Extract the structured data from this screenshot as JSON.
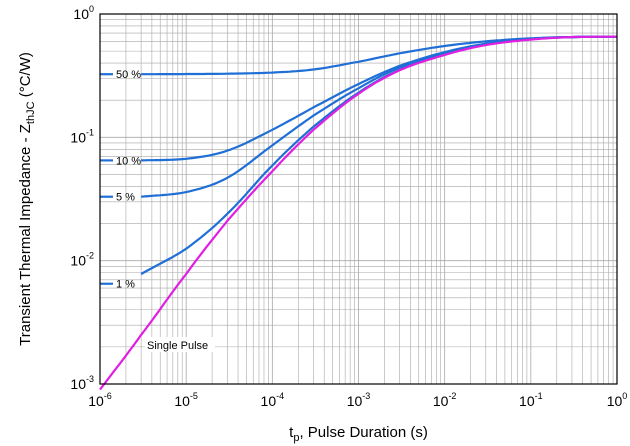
{
  "chart_data": {
    "type": "line",
    "scale": {
      "x": "log",
      "y": "log"
    },
    "xlim": [
      1e-06,
      1
    ],
    "ylim": [
      0.001,
      1
    ],
    "grid": true,
    "xlabel": {
      "main": "t",
      "sub": "p",
      "rest": ", Pulse Duration (s)"
    },
    "ylabel": {
      "main": "Transient Thermal Impedance - Z",
      "sub": "thJC",
      "rest": " (°C/W)"
    },
    "x_ticks": [
      {
        "base": "10",
        "exp": "-6"
      },
      {
        "base": "10",
        "exp": "-5"
      },
      {
        "base": "10",
        "exp": "-4"
      },
      {
        "base": "10",
        "exp": "-3"
      },
      {
        "base": "10",
        "exp": "-2"
      },
      {
        "base": "10",
        "exp": "-1"
      },
      {
        "base": "10",
        "exp": "0"
      }
    ],
    "y_ticks": [
      {
        "base": "10",
        "exp": "-3"
      },
      {
        "base": "10",
        "exp": "-2"
      },
      {
        "base": "10",
        "exp": "-1"
      },
      {
        "base": "10",
        "exp": "0"
      }
    ],
    "colors": {
      "duty": "#1f6fd6",
      "single": "#e020e0",
      "grid": "#a8a8a8",
      "frame": "#000000"
    },
    "series": [
      {
        "name": "50 %",
        "color": "#1f6fd6",
        "x": [
          3e-06,
          1e-05,
          3e-05,
          0.0001,
          0.0003,
          0.001,
          0.003,
          0.01,
          0.03,
          0.1,
          0.3,
          1
        ],
        "y": [
          0.325,
          0.326,
          0.328,
          0.335,
          0.355,
          0.41,
          0.48,
          0.55,
          0.6,
          0.635,
          0.65,
          0.655
        ]
      },
      {
        "name": "10 %",
        "color": "#1f6fd6",
        "x": [
          3e-06,
          1e-05,
          3e-05,
          0.0001,
          0.0003,
          0.001,
          0.003,
          0.01,
          0.03,
          0.1,
          0.3,
          1
        ],
        "y": [
          0.065,
          0.067,
          0.078,
          0.115,
          0.175,
          0.27,
          0.38,
          0.49,
          0.575,
          0.63,
          0.65,
          0.655
        ]
      },
      {
        "name": "5 %",
        "color": "#1f6fd6",
        "x": [
          3e-06,
          1e-05,
          3e-05,
          0.0001,
          0.0003,
          0.001,
          0.003,
          0.01,
          0.03,
          0.1,
          0.3,
          1
        ],
        "y": [
          0.033,
          0.036,
          0.047,
          0.086,
          0.15,
          0.25,
          0.37,
          0.48,
          0.57,
          0.625,
          0.65,
          0.655
        ]
      },
      {
        "name": "1 %",
        "color": "#1f6fd6",
        "x": [
          3e-06,
          1e-05,
          3e-05,
          0.0001,
          0.0003,
          0.001,
          0.003,
          0.01,
          0.03,
          0.1,
          0.3,
          1
        ],
        "y": [
          0.0078,
          0.0125,
          0.024,
          0.059,
          0.122,
          0.23,
          0.355,
          0.47,
          0.565,
          0.625,
          0.65,
          0.655
        ]
      },
      {
        "name": "Single Pulse",
        "color": "#e020e0",
        "x": [
          1e-06,
          3e-06,
          1e-05,
          3e-05,
          0.0001,
          0.0003,
          0.001,
          0.003,
          0.01,
          0.03,
          0.1,
          0.3,
          1
        ],
        "y": [
          0.0009,
          0.0025,
          0.0078,
          0.021,
          0.053,
          0.115,
          0.225,
          0.35,
          0.465,
          0.56,
          0.62,
          0.65,
          0.655
        ]
      }
    ],
    "leaders": [
      {
        "label": "50 %",
        "y": 0.325
      },
      {
        "label": "10 %",
        "y": 0.065
      },
      {
        "label": "5 %",
        "y": 0.033
      },
      {
        "label": "1 %",
        "y": 0.0065
      }
    ],
    "single_pulse_label": "Single Pulse"
  }
}
